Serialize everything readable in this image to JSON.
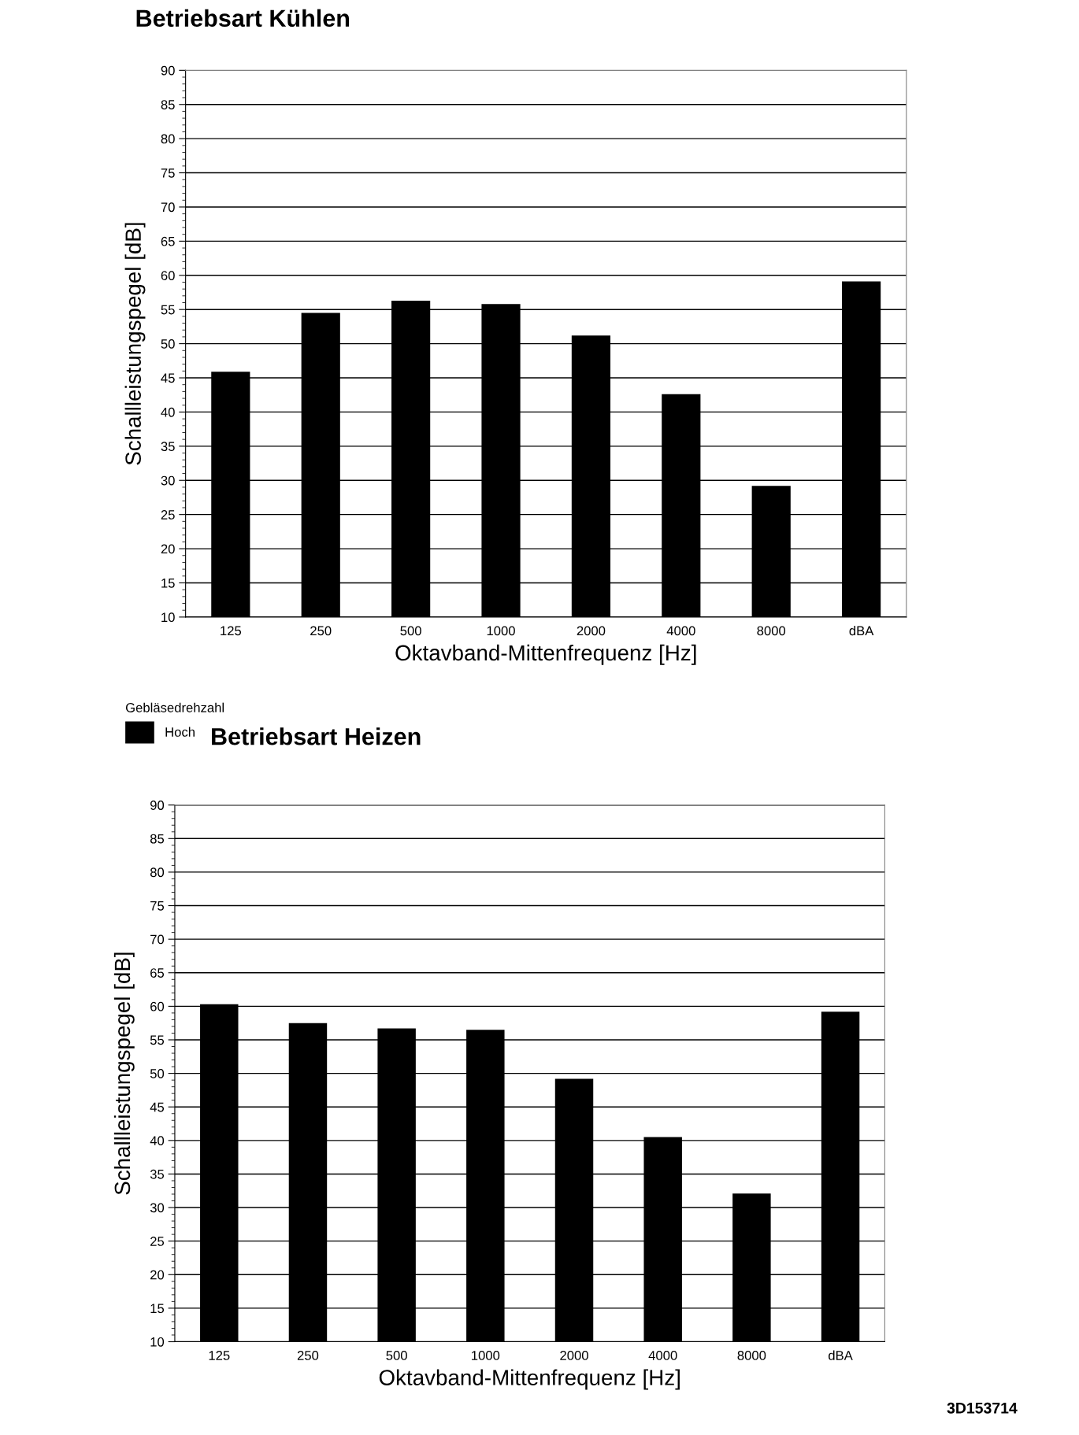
{
  "chart_data": [
    {
      "type": "bar",
      "title": "Betriebsart Kühlen",
      "xlabel": "Oktavband-Mittenfrequenz [Hz]",
      "ylabel": "Schallleistungspegel [dB]",
      "legend_title": "Gebläsedrehzahl",
      "categories": [
        "125",
        "250",
        "500",
        "1000",
        "2000",
        "4000",
        "8000",
        "dBA"
      ],
      "series": [
        {
          "name": "Hoch",
          "color": "#000000",
          "values": [
            45.9,
            54.5,
            56.3,
            55.8,
            51.2,
            42.6,
            29.2,
            59.1
          ]
        }
      ],
      "ylim": [
        10,
        90
      ],
      "yticks": [
        10,
        15,
        20,
        25,
        30,
        35,
        40,
        45,
        50,
        55,
        60,
        65,
        70,
        75,
        80,
        85,
        90
      ],
      "grid": "y",
      "legend": "bottom left"
    },
    {
      "type": "bar",
      "title": "Betriebsart Heizen",
      "xlabel": "Oktavband-Mittenfrequenz [Hz]",
      "ylabel": "Schallleistungspegel [dB]",
      "categories": [
        "125",
        "250",
        "500",
        "1000",
        "2000",
        "4000",
        "8000",
        "dBA"
      ],
      "series": [
        {
          "color": "#000000",
          "values": [
            60.3,
            57.5,
            56.7,
            56.5,
            49.2,
            40.5,
            32.1,
            59.2
          ]
        }
      ],
      "ylim": [
        10,
        90
      ],
      "yticks": [
        10,
        15,
        20,
        25,
        30,
        35,
        40,
        45,
        50,
        55,
        60,
        65,
        70,
        75,
        80,
        85,
        90
      ],
      "grid": "y",
      "annotations": [
        "3D153714"
      ]
    }
  ]
}
